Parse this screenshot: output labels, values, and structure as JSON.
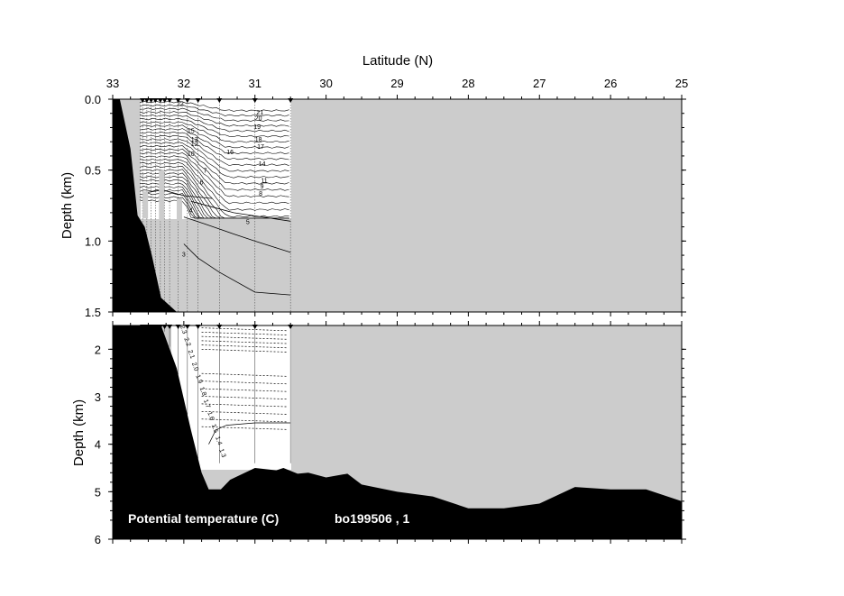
{
  "chart_data": {
    "type": "contour",
    "x_axis": {
      "label": "Latitude (N)",
      "range": [
        33,
        25
      ],
      "ticks": [
        "33",
        "32",
        "31",
        "30",
        "29",
        "28",
        "27",
        "26",
        "25"
      ]
    },
    "upper_panel": {
      "ylabel": "Depth (km)",
      "ylim": [
        0,
        1.5
      ],
      "ticks": [
        "0.0",
        "0.5",
        "1.0",
        "1.5"
      ],
      "contour_labels": [
        "22",
        "21",
        "20",
        "19",
        "18",
        "17",
        "16",
        "15",
        "14",
        "13",
        "12",
        "11",
        "10",
        "9",
        "8",
        "7",
        "6",
        "5",
        "4",
        "3"
      ]
    },
    "lower_panel": {
      "ylabel": "Depth (km)",
      "ylim": [
        1.5,
        6
      ],
      "ticks": [
        "2",
        "3",
        "4",
        "5",
        "6"
      ],
      "contour_labels": [
        "2.3",
        "2.2",
        "2.1",
        "2.0",
        "1.9",
        "1.8",
        "1.7",
        "1.6",
        "1.5",
        "1.4",
        "1.3"
      ]
    },
    "station_latitudes": [
      32.58,
      32.52,
      32.46,
      32.4,
      32.33,
      32.27,
      32.2,
      32.08,
      31.95,
      31.8,
      31.5,
      31.0,
      30.5
    ],
    "bathymetry": [
      {
        "lat": 33.0,
        "depth": 0.0
      },
      {
        "lat": 32.9,
        "depth": 0.0
      },
      {
        "lat": 32.75,
        "depth": 0.35
      },
      {
        "lat": 32.65,
        "depth": 0.82
      },
      {
        "lat": 32.55,
        "depth": 0.9
      },
      {
        "lat": 32.45,
        "depth": 1.1
      },
      {
        "lat": 32.32,
        "depth": 1.4
      },
      {
        "lat": 32.1,
        "depth": 2.4
      },
      {
        "lat": 31.9,
        "depth": 3.7
      },
      {
        "lat": 31.75,
        "depth": 4.6
      },
      {
        "lat": 31.65,
        "depth": 4.95
      },
      {
        "lat": 31.48,
        "depth": 4.95
      },
      {
        "lat": 31.35,
        "depth": 4.75
      },
      {
        "lat": 31.0,
        "depth": 4.5
      },
      {
        "lat": 30.7,
        "depth": 4.55
      },
      {
        "lat": 30.6,
        "depth": 4.5
      },
      {
        "lat": 30.4,
        "depth": 4.62
      },
      {
        "lat": 30.25,
        "depth": 4.6
      },
      {
        "lat": 30.0,
        "depth": 4.7
      },
      {
        "lat": 29.7,
        "depth": 4.62
      },
      {
        "lat": 29.5,
        "depth": 4.85
      },
      {
        "lat": 29.0,
        "depth": 5.0
      },
      {
        "lat": 28.5,
        "depth": 5.1
      },
      {
        "lat": 28.0,
        "depth": 5.35
      },
      {
        "lat": 27.5,
        "depth": 5.35
      },
      {
        "lat": 27.0,
        "depth": 5.25
      },
      {
        "lat": 26.5,
        "depth": 4.9
      },
      {
        "lat": 26.0,
        "depth": 4.95
      },
      {
        "lat": 25.5,
        "depth": 4.95
      },
      {
        "lat": 25.0,
        "depth": 5.2
      }
    ],
    "footer_title": "Potential temperature (C)",
    "footer_cruise": "bo199506 , 1"
  }
}
